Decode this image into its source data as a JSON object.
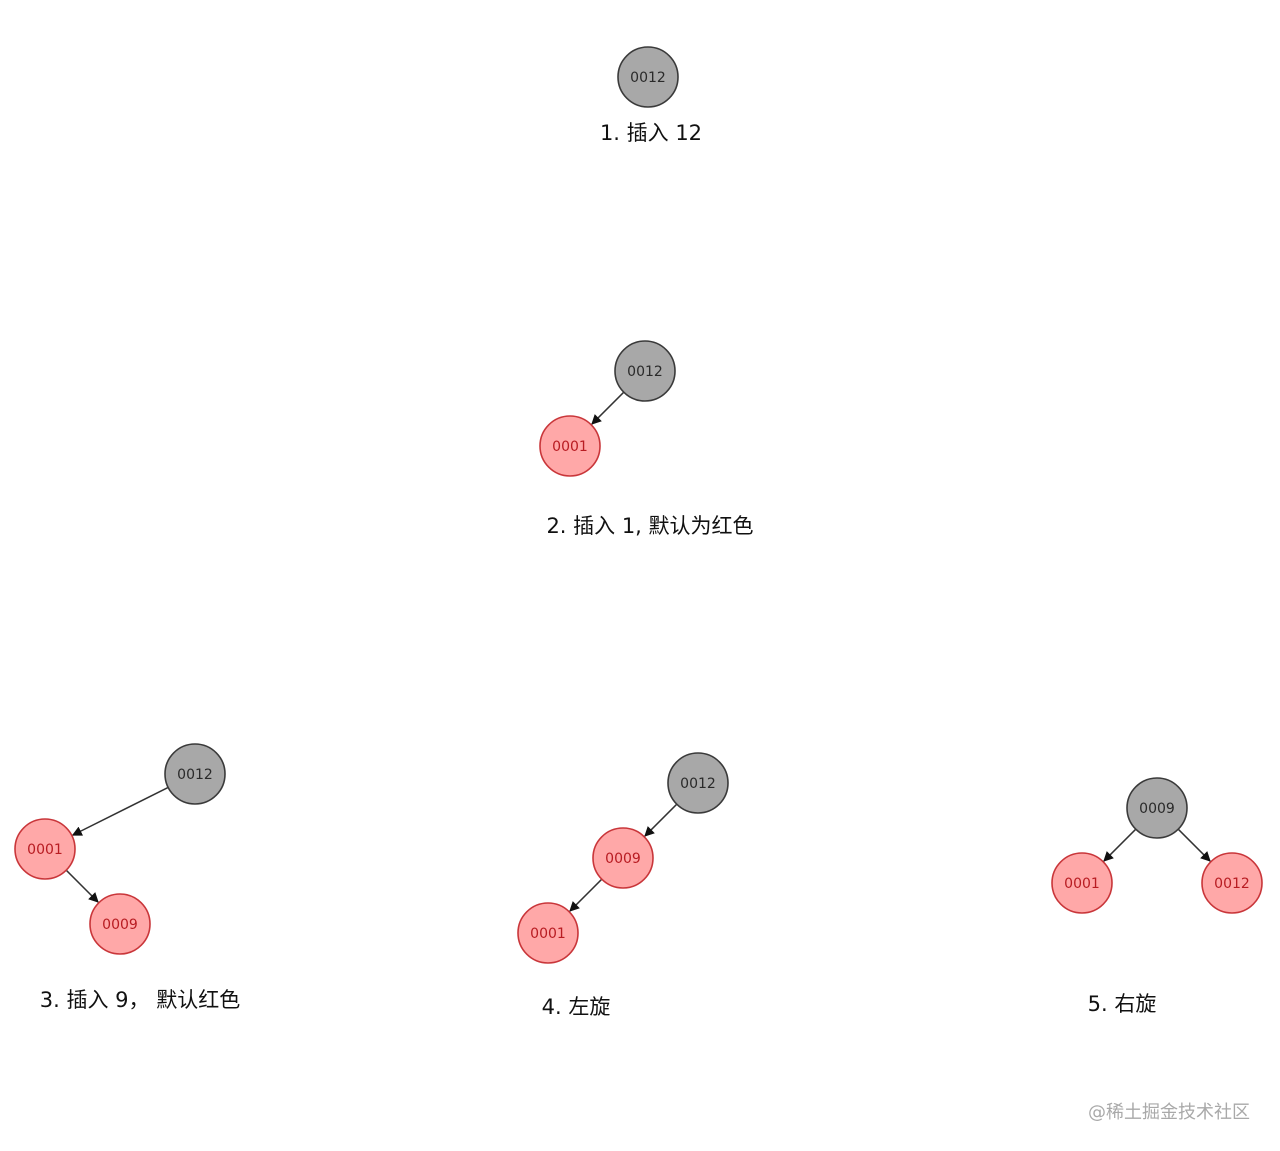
{
  "colors": {
    "black_node_fill": "#a8a8a8",
    "black_node_stroke": "#3a3a3a",
    "black_node_text": "#2a2a2a",
    "red_node_fill": "#ffa8a8",
    "red_node_stroke": "#c9363a",
    "red_node_text": "#b81c22",
    "edge": "#333333",
    "caption": "#111111",
    "watermark": "#a9a9a9"
  },
  "steps": [
    {
      "caption": "1. 插入 12",
      "nodes": [
        {
          "id": "n12",
          "label": "0012",
          "color": "black"
        }
      ],
      "edges": []
    },
    {
      "caption": "2. 插入 1, 默认为红色",
      "nodes": [
        {
          "id": "n12",
          "label": "0012",
          "color": "black"
        },
        {
          "id": "n1",
          "label": "0001",
          "color": "red"
        }
      ],
      "edges": [
        {
          "from": "n12",
          "to": "n1"
        }
      ]
    },
    {
      "caption": "3. 插入 9， 默认红色",
      "nodes": [
        {
          "id": "n12",
          "label": "0012",
          "color": "black"
        },
        {
          "id": "n1",
          "label": "0001",
          "color": "red"
        },
        {
          "id": "n9",
          "label": "0009",
          "color": "red"
        }
      ],
      "edges": [
        {
          "from": "n12",
          "to": "n1"
        },
        {
          "from": "n1",
          "to": "n9"
        }
      ]
    },
    {
      "caption": "4. 左旋",
      "nodes": [
        {
          "id": "n12",
          "label": "0012",
          "color": "black"
        },
        {
          "id": "n9",
          "label": "0009",
          "color": "red"
        },
        {
          "id": "n1",
          "label": "0001",
          "color": "red"
        }
      ],
      "edges": [
        {
          "from": "n12",
          "to": "n9"
        },
        {
          "from": "n9",
          "to": "n1"
        }
      ]
    },
    {
      "caption": "5. 右旋",
      "nodes": [
        {
          "id": "n9",
          "label": "0009",
          "color": "black"
        },
        {
          "id": "n1",
          "label": "0001",
          "color": "red"
        },
        {
          "id": "n12",
          "label": "0012",
          "color": "red"
        }
      ],
      "edges": [
        {
          "from": "n9",
          "to": "n1"
        },
        {
          "from": "n9",
          "to": "n12"
        }
      ]
    }
  ],
  "watermark": "@稀土掘金技术社区"
}
